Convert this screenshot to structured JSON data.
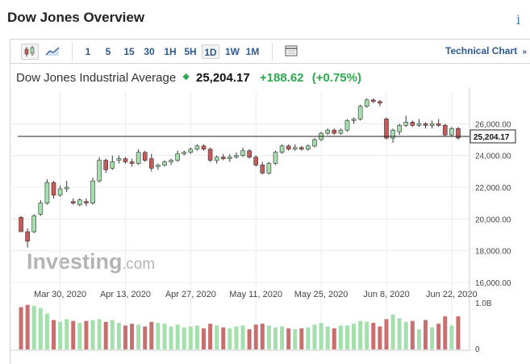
{
  "header": {
    "title": "Dow Jones Overview",
    "info_icon": "info-icon"
  },
  "toolbar": {
    "chart_type_icons": [
      "candlestick-icon",
      "area-chart-icon"
    ],
    "timeframes": [
      "1",
      "5",
      "15",
      "30",
      "1H",
      "5H",
      "1D",
      "1W",
      "1M"
    ],
    "active_timeframe": "1D",
    "table_icon": "table-icon",
    "technical_chart": "Technical Chart"
  },
  "quote": {
    "name": "Dow Jones Industrial Average",
    "price": "25,204.17",
    "change": "+188.62",
    "change_pct": "(+0.75%)",
    "direction_icon": "up-arrow-icon",
    "up_color": "#2fa84f"
  },
  "watermark": {
    "brand": "Investing",
    "suffix": ".com"
  },
  "chart_data": {
    "type": "candlestick",
    "ylim": [
      16000,
      28000
    ],
    "yticks": [
      "26,000.00",
      "24,000.00",
      "22,000.00",
      "20,000.00",
      "18,000.00",
      "16,000.00"
    ],
    "ytick_values": [
      26000,
      24000,
      22000,
      20000,
      18000,
      16000
    ],
    "current_price_label": "25,204.17",
    "current_price": 25204.17,
    "xticks": [
      "Mar 30, 2020",
      "Apr 13, 2020",
      "Apr 27, 2020",
      "May 11, 2020",
      "May 25, 2020",
      "Jun 8, 2020",
      "Jun 22, 2020"
    ],
    "xtick_index": [
      6,
      16,
      26,
      36,
      46,
      56,
      66
    ],
    "up_color": "#a6dfae",
    "down_color": "#c85a5a",
    "volume_axis": {
      "max_label": "1.0B",
      "min_label": "0",
      "max": 1.0
    },
    "candles": [
      [
        20100,
        20200,
        19200,
        19200
      ],
      [
        19200,
        19400,
        18200,
        18600
      ],
      [
        19200,
        20300,
        19100,
        20200
      ],
      [
        20300,
        21200,
        20200,
        21000
      ],
      [
        21000,
        22500,
        20900,
        22300
      ],
      [
        22300,
        22400,
        21300,
        21500
      ],
      [
        21500,
        22100,
        21400,
        21900
      ],
      [
        21900,
        22400,
        21700,
        22000
      ],
      [
        21100,
        21300,
        20900,
        21000
      ],
      [
        20900,
        21300,
        20800,
        21200
      ],
      [
        21100,
        21300,
        20800,
        21000
      ],
      [
        21000,
        22600,
        20900,
        22400
      ],
      [
        22400,
        23900,
        22300,
        23700
      ],
      [
        23700,
        23800,
        22900,
        23100
      ],
      [
        23200,
        24000,
        23100,
        23600
      ],
      [
        23700,
        24000,
        23500,
        23800
      ],
      [
        23800,
        23900,
        23500,
        23600
      ],
      [
        23600,
        23800,
        23300,
        23500
      ],
      [
        23500,
        24400,
        23400,
        24200
      ],
      [
        24200,
        24300,
        23600,
        23700
      ],
      [
        23800,
        24100,
        23000,
        23200
      ],
      [
        23300,
        23500,
        23100,
        23400
      ],
      [
        23400,
        23700,
        23300,
        23600
      ],
      [
        23600,
        23800,
        23400,
        23700
      ],
      [
        23700,
        24300,
        23600,
        24100
      ],
      [
        24100,
        24300,
        24000,
        24200
      ],
      [
        24200,
        24500,
        24100,
        24400
      ],
      [
        24400,
        24700,
        24300,
        24600
      ],
      [
        24600,
        24700,
        24300,
        24400
      ],
      [
        24400,
        24500,
        23600,
        23700
      ],
      [
        23700,
        24000,
        23500,
        23900
      ],
      [
        23900,
        24100,
        23700,
        23800
      ],
      [
        23800,
        24100,
        23600,
        23900
      ],
      [
        23900,
        24200,
        23800,
        24000
      ],
      [
        24000,
        24500,
        23900,
        24300
      ],
      [
        24300,
        24400,
        23800,
        23900
      ],
      [
        23900,
        24000,
        23300,
        23400
      ],
      [
        23400,
        23600,
        22800,
        22900
      ],
      [
        22900,
        23600,
        22800,
        23500
      ],
      [
        23500,
        24300,
        23400,
        24200
      ],
      [
        24200,
        24700,
        24100,
        24600
      ],
      [
        24600,
        24700,
        24300,
        24400
      ],
      [
        24400,
        24700,
        24300,
        24500
      ],
      [
        24500,
        24600,
        24300,
        24400
      ],
      [
        24400,
        24700,
        24300,
        24600
      ],
      [
        24600,
        25100,
        24500,
        25000
      ],
      [
        25000,
        25500,
        24900,
        25400
      ],
      [
        25400,
        25700,
        25300,
        25600
      ],
      [
        25600,
        25700,
        25300,
        25400
      ],
      [
        25400,
        25700,
        25300,
        25600
      ],
      [
        25600,
        26300,
        25500,
        26200
      ],
      [
        26200,
        26400,
        26000,
        26300
      ],
      [
        26300,
        27200,
        26200,
        27100
      ],
      [
        27100,
        27600,
        27000,
        27500
      ],
      [
        27500,
        27600,
        27300,
        27400
      ],
      [
        27400,
        27500,
        27100,
        27300
      ],
      [
        26300,
        26400,
        25000,
        25100
      ],
      [
        25100,
        25700,
        24800,
        25600
      ],
      [
        25500,
        26000,
        25300,
        25900
      ],
      [
        25900,
        26500,
        25800,
        26100
      ],
      [
        26100,
        26200,
        25800,
        25900
      ],
      [
        25900,
        26300,
        25800,
        26000
      ],
      [
        26000,
        26100,
        25700,
        25900
      ],
      [
        25900,
        26200,
        25700,
        26000
      ],
      [
        26000,
        26300,
        25800,
        25900
      ],
      [
        25900,
        26000,
        25200,
        25300
      ],
      [
        25300,
        25800,
        25200,
        25700
      ],
      [
        25700,
        25800,
        25000,
        25100
      ]
    ],
    "volume": [
      0.92,
      0.97,
      0.95,
      0.9,
      0.78,
      0.64,
      0.6,
      0.66,
      0.62,
      0.58,
      0.62,
      0.64,
      0.66,
      0.6,
      0.64,
      0.58,
      0.52,
      0.56,
      0.54,
      0.5,
      0.6,
      0.58,
      0.56,
      0.5,
      0.54,
      0.48,
      0.5,
      0.52,
      0.46,
      0.56,
      0.52,
      0.48,
      0.46,
      0.5,
      0.52,
      0.44,
      0.54,
      0.56,
      0.52,
      0.48,
      0.5,
      0.46,
      0.44,
      0.46,
      0.48,
      0.54,
      0.58,
      0.5,
      0.46,
      0.52,
      0.52,
      0.56,
      0.62,
      0.6,
      0.58,
      0.5,
      0.66,
      0.76,
      0.68,
      0.6,
      0.62,
      0.44,
      0.64,
      0.48,
      0.56,
      0.72,
      0.52,
      0.72
    ]
  }
}
